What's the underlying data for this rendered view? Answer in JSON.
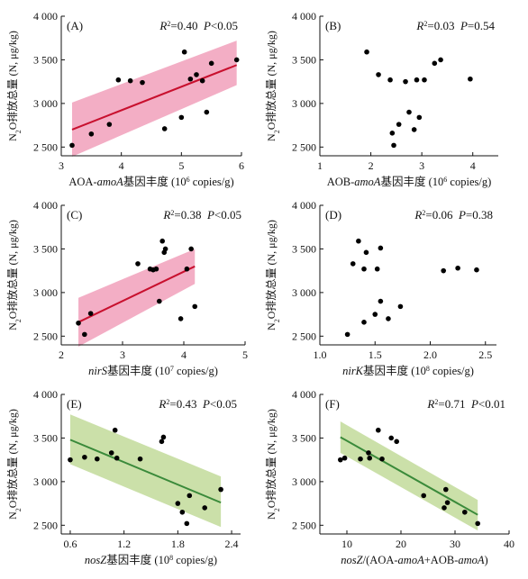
{
  "figure": {
    "panels_count": 6
  },
  "chart_data": [
    {
      "type": "scatter",
      "panel_label": "(A)",
      "stat": "R²=0.40  P<0.05",
      "ylabel": "N₂O排放总量 (N, μg/kg)",
      "xlabel": "AOA-amoA基因丰度 (10⁶ copies/g)",
      "xlim": [
        3,
        6
      ],
      "ylim": [
        2400,
        4000
      ],
      "xticks": [
        3,
        4,
        5,
        6
      ],
      "yticks": [
        2500,
        3000,
        3500,
        4000
      ],
      "ytick_labels": [
        "2 500",
        "3 000",
        "3 500",
        "4 000"
      ],
      "x": [
        3.18,
        3.5,
        3.8,
        3.95,
        4.15,
        4.35,
        4.72,
        5.0,
        5.05,
        5.15,
        5.25,
        5.35,
        5.42,
        5.5,
        5.92
      ],
      "y": [
        2520,
        2650,
        2760,
        3270,
        3260,
        3240,
        2710,
        2840,
        3590,
        3280,
        3330,
        3260,
        2900,
        3460,
        3500
      ],
      "fit": {
        "x": [
          3.18,
          5.92
        ],
        "y": [
          2700,
          3440
        ],
        "ci_lower": [
          2390,
          3210
        ],
        "ci_upper": [
          3010,
          3720
        ]
      },
      "fit_color": "#c8102e",
      "band_color": "#f2a5bf"
    },
    {
      "type": "scatter",
      "panel_label": "(B)",
      "stat": "R²=0.03  P=0.54",
      "ylabel": "N₂O排放总量 (N, μg/kg)",
      "xlabel": "AOB-amoA基因丰度 (10⁶ copies/g)",
      "xlim": [
        1,
        4.5
      ],
      "ylim": [
        2400,
        4000
      ],
      "xticks": [
        1,
        2,
        3,
        4
      ],
      "yticks": [
        2500,
        3000,
        3500,
        4000
      ],
      "ytick_labels": [
        "2 500",
        "3 000",
        "3 500",
        "4 000"
      ],
      "x": [
        1.92,
        2.15,
        2.38,
        2.42,
        2.45,
        2.55,
        2.68,
        2.75,
        2.85,
        2.9,
        2.95,
        3.05,
        3.25,
        3.37,
        3.95
      ],
      "y": [
        3590,
        3330,
        3270,
        2660,
        2520,
        2760,
        3250,
        2900,
        2700,
        3270,
        2840,
        3270,
        3460,
        3500,
        3280
      ]
    },
    {
      "type": "scatter",
      "panel_label": "(C)",
      "stat": "R²=0.38  P<0.05",
      "ylabel": "N₂O排放总量 (N, μg/kg)",
      "xlabel": "nirS基因丰度 (10⁷ copies/g)",
      "xlim": [
        2,
        5
      ],
      "ylim": [
        2400,
        4000
      ],
      "xticks": [
        2,
        3,
        4,
        5
      ],
      "yticks": [
        2500,
        3000,
        3500,
        4000
      ],
      "ytick_labels": [
        "2 500",
        "3 000",
        "3 500",
        "4 000"
      ],
      "x": [
        2.28,
        2.38,
        2.48,
        3.25,
        3.45,
        3.5,
        3.55,
        3.6,
        3.65,
        3.68,
        3.7,
        3.95,
        4.05,
        4.12,
        4.18
      ],
      "y": [
        2650,
        2520,
        2760,
        3330,
        3270,
        3260,
        3270,
        2900,
        3590,
        3460,
        3500,
        2700,
        3270,
        3500,
        2840
      ],
      "fit": {
        "x": [
          2.28,
          4.18
        ],
        "y": [
          2660,
          3300
        ],
        "ci_lower": [
          2380,
          3100
        ],
        "ci_upper": [
          2940,
          3500
        ]
      },
      "fit_color": "#c8102e",
      "band_color": "#f2a5bf"
    },
    {
      "type": "scatter",
      "panel_label": "(D)",
      "stat": "R²=0.06  P=0.38",
      "ylabel": "N₂O排放总量 (N, μg/kg)",
      "xlabel": "nirK基因丰度 (10⁸ copies/g)",
      "xlim": [
        1.0,
        2.6
      ],
      "ylim": [
        2400,
        4000
      ],
      "xticks": [
        1.0,
        1.5,
        2.0,
        2.5
      ],
      "xtick_labels": [
        "1.0",
        "1.5",
        "2.0",
        "2.5"
      ],
      "yticks": [
        2500,
        3000,
        3500,
        4000
      ],
      "ytick_labels": [
        "2 500",
        "3 000",
        "3 500",
        "4 000"
      ],
      "x": [
        1.25,
        1.3,
        1.35,
        1.4,
        1.4,
        1.42,
        1.5,
        1.52,
        1.55,
        1.55,
        1.62,
        1.73,
        2.12,
        2.25,
        2.42
      ],
      "y": [
        2520,
        3330,
        3590,
        2660,
        3270,
        3460,
        2750,
        3270,
        2900,
        3510,
        2700,
        2840,
        3250,
        3280,
        3260
      ]
    },
    {
      "type": "scatter",
      "panel_label": "(E)",
      "stat": "R²=0.43  P<0.05",
      "ylabel": "N₂O排放总量 (N, μg/kg)",
      "xlabel": "nosZ基因丰度 (10⁸ copies/g)",
      "xlim": [
        0.5,
        2.5
      ],
      "ylim": [
        2400,
        4000
      ],
      "xticks": [
        0.6,
        1.2,
        1.8,
        2.4
      ],
      "xtick_labels": [
        "0.6",
        "1.2",
        "1.8",
        "2.4"
      ],
      "yticks": [
        2500,
        3000,
        3500,
        4000
      ],
      "ytick_labels": [
        "2 500",
        "3 000",
        "3 500",
        "4 000"
      ],
      "x": [
        0.6,
        0.76,
        0.9,
        1.06,
        1.1,
        1.12,
        1.38,
        1.62,
        1.64,
        1.8,
        1.85,
        1.9,
        1.93,
        2.1,
        2.28
      ],
      "y": [
        3250,
        3280,
        3260,
        3330,
        3590,
        3270,
        3260,
        3460,
        3510,
        2750,
        2650,
        2520,
        2840,
        2700,
        2910
      ],
      "fit": {
        "x": [
          0.6,
          2.28
        ],
        "y": [
          3480,
          2760
        ],
        "ci_lower": [
          3200,
          2480
        ],
        "ci_upper": [
          3770,
          3060
        ]
      },
      "fit_color": "#3a8a3a",
      "band_color": "#c5dda0"
    },
    {
      "type": "scatter",
      "panel_label": "(F)",
      "stat": "R²=0.71  P<0.01",
      "ylabel": "N₂O排放总量 (N, μg/kg)",
      "xlabel": "nosZ/(AOA-amoA+AOB-amoA)",
      "xlim": [
        5,
        40
      ],
      "ylim": [
        2400,
        4000
      ],
      "xticks": [
        10,
        20,
        30,
        40
      ],
      "yticks": [
        2500,
        3000,
        3500,
        4000
      ],
      "ytick_labels": [
        "2 500",
        "3 000",
        "3 500",
        "4 000"
      ],
      "x": [
        8.8,
        9.6,
        12.5,
        14.0,
        14.2,
        15.8,
        16.5,
        18.2,
        19.2,
        24.2,
        28.0,
        28.3,
        28.6,
        31.8,
        34.2
      ],
      "y": [
        3250,
        3270,
        3260,
        3330,
        3270,
        3590,
        3260,
        3500,
        3460,
        2840,
        2700,
        2910,
        2760,
        2650,
        2520
      ],
      "fit": {
        "x": [
          8.8,
          34.2
        ],
        "y": [
          3510,
          2620
        ],
        "ci_lower": [
          3330,
          2440
        ],
        "ci_upper": [
          3690,
          2790
        ]
      },
      "fit_color": "#3a8a3a",
      "band_color": "#c5dda0"
    }
  ]
}
